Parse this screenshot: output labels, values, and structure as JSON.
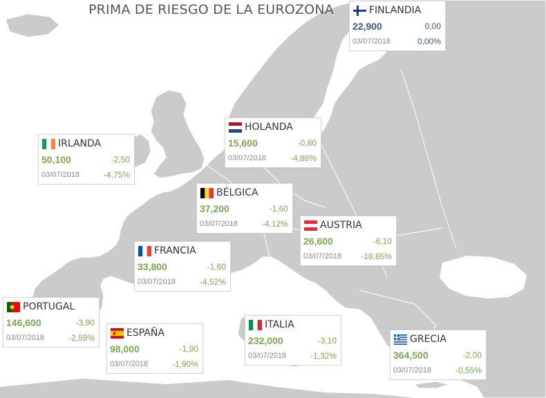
{
  "title": "PRIMA DE RIESGO DE LA EUROZONA",
  "colors": {
    "land": "#cbcbcb",
    "sea": "#ffffff",
    "border": "#ffffff",
    "positive": "#7aaa4e",
    "neutral": "#3b5a8a"
  },
  "countries": [
    {
      "id": "finlandia",
      "name": "FINLANDIA",
      "value": "22,900",
      "change": "0,00",
      "date": "03/07/2018",
      "pct": "0,00%",
      "trend": "neutral",
      "flag": "finland-flag"
    },
    {
      "id": "holanda",
      "name": "HOLANDA",
      "value": "15,600",
      "change": "-0,80",
      "date": "03/07/2018",
      "pct": "-4,88%",
      "trend": "positive",
      "flag": "netherlands-flag"
    },
    {
      "id": "irlanda",
      "name": "IRLANDA",
      "value": "50,100",
      "change": "-2,50",
      "date": "03/07/2018",
      "pct": "-4,75%",
      "trend": "positive",
      "flag": "ireland-flag"
    },
    {
      "id": "belgica",
      "name": "BÉLGICA",
      "value": "37,200",
      "change": "-1,60",
      "date": "03/07/2018",
      "pct": "-4,12%",
      "trend": "positive",
      "flag": "belgium-flag"
    },
    {
      "id": "austria",
      "name": "AUSTRIA",
      "value": "26,600",
      "change": "-6,10",
      "date": "03/07/2018",
      "pct": "-18,65%",
      "trend": "positive",
      "flag": "austria-flag"
    },
    {
      "id": "francia",
      "name": "FRANCIA",
      "value": "33,800",
      "change": "-1,60",
      "date": "03/07/2018",
      "pct": "-4,52%",
      "trend": "positive",
      "flag": "france-flag"
    },
    {
      "id": "portugal",
      "name": "PORTUGAL",
      "value": "146,600",
      "change": "-3,90",
      "date": "03/07/2018",
      "pct": "-2,59%",
      "trend": "positive",
      "flag": "portugal-flag"
    },
    {
      "id": "espana",
      "name": "ESPAÑA",
      "value": "98,000",
      "change": "-1,90",
      "date": "03/07/2018",
      "pct": "-1,90%",
      "trend": "positive",
      "flag": "spain-flag"
    },
    {
      "id": "italia",
      "name": "ITALIA",
      "value": "232,000",
      "change": "-3,10",
      "date": "03/07/2018",
      "pct": "-1,32%",
      "trend": "positive",
      "flag": "italy-flag"
    },
    {
      "id": "grecia",
      "name": "GRECIA",
      "value": "364,500",
      "change": "-2,00",
      "date": "03/07/2018",
      "pct": "-0,55%",
      "trend": "positive",
      "flag": "greece-flag"
    }
  ]
}
